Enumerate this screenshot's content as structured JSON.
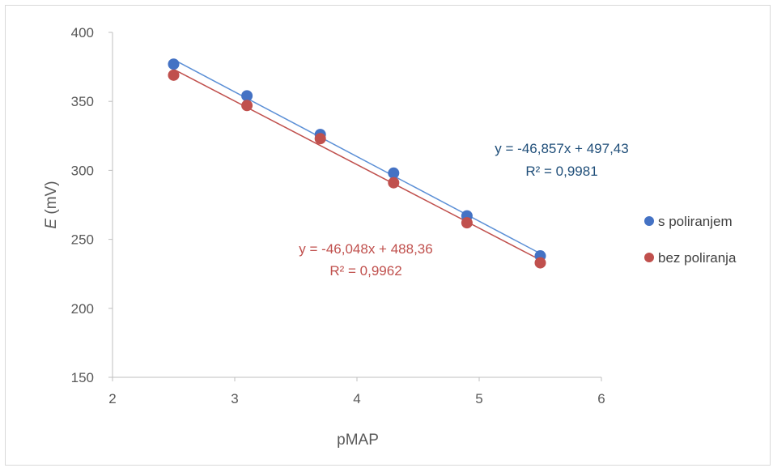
{
  "chart_data": {
    "type": "scatter",
    "xlabel": "pMAP",
    "ylabel_italic": "E",
    "ylabel_rest": " (mV)",
    "xlim": [
      2,
      6
    ],
    "ylim": [
      150,
      400
    ],
    "xticks": [
      2,
      3,
      4,
      5,
      6
    ],
    "yticks": [
      150,
      200,
      250,
      300,
      350,
      400
    ],
    "grid": false,
    "legend_position": "right",
    "series": [
      {
        "name": "s poliranjem",
        "color": "#4472c4",
        "line_color": "#5b8fd6",
        "x": [
          2.5,
          3.1,
          3.7,
          4.3,
          4.9,
          5.5
        ],
        "y": [
          377,
          354,
          326,
          298,
          267,
          238
        ],
        "trendline": {
          "slope": -46.857,
          "intercept": 497.43
        },
        "equation": "y = -46,857x + 497,43",
        "r2": "R² = 0,9981",
        "label_color": "#1f4e79"
      },
      {
        "name": "bez poliranja",
        "color": "#c0504d",
        "line_color": "#c0504d",
        "x": [
          2.5,
          3.1,
          3.7,
          4.3,
          4.9,
          5.5
        ],
        "y": [
          369,
          347,
          323,
          291,
          262,
          233
        ],
        "trendline": {
          "slope": -46.048,
          "intercept": 488.36
        },
        "equation": "y = -46,048x + 488,36",
        "r2": "R² = 0,9962",
        "label_color": "#c0504d"
      }
    ]
  }
}
